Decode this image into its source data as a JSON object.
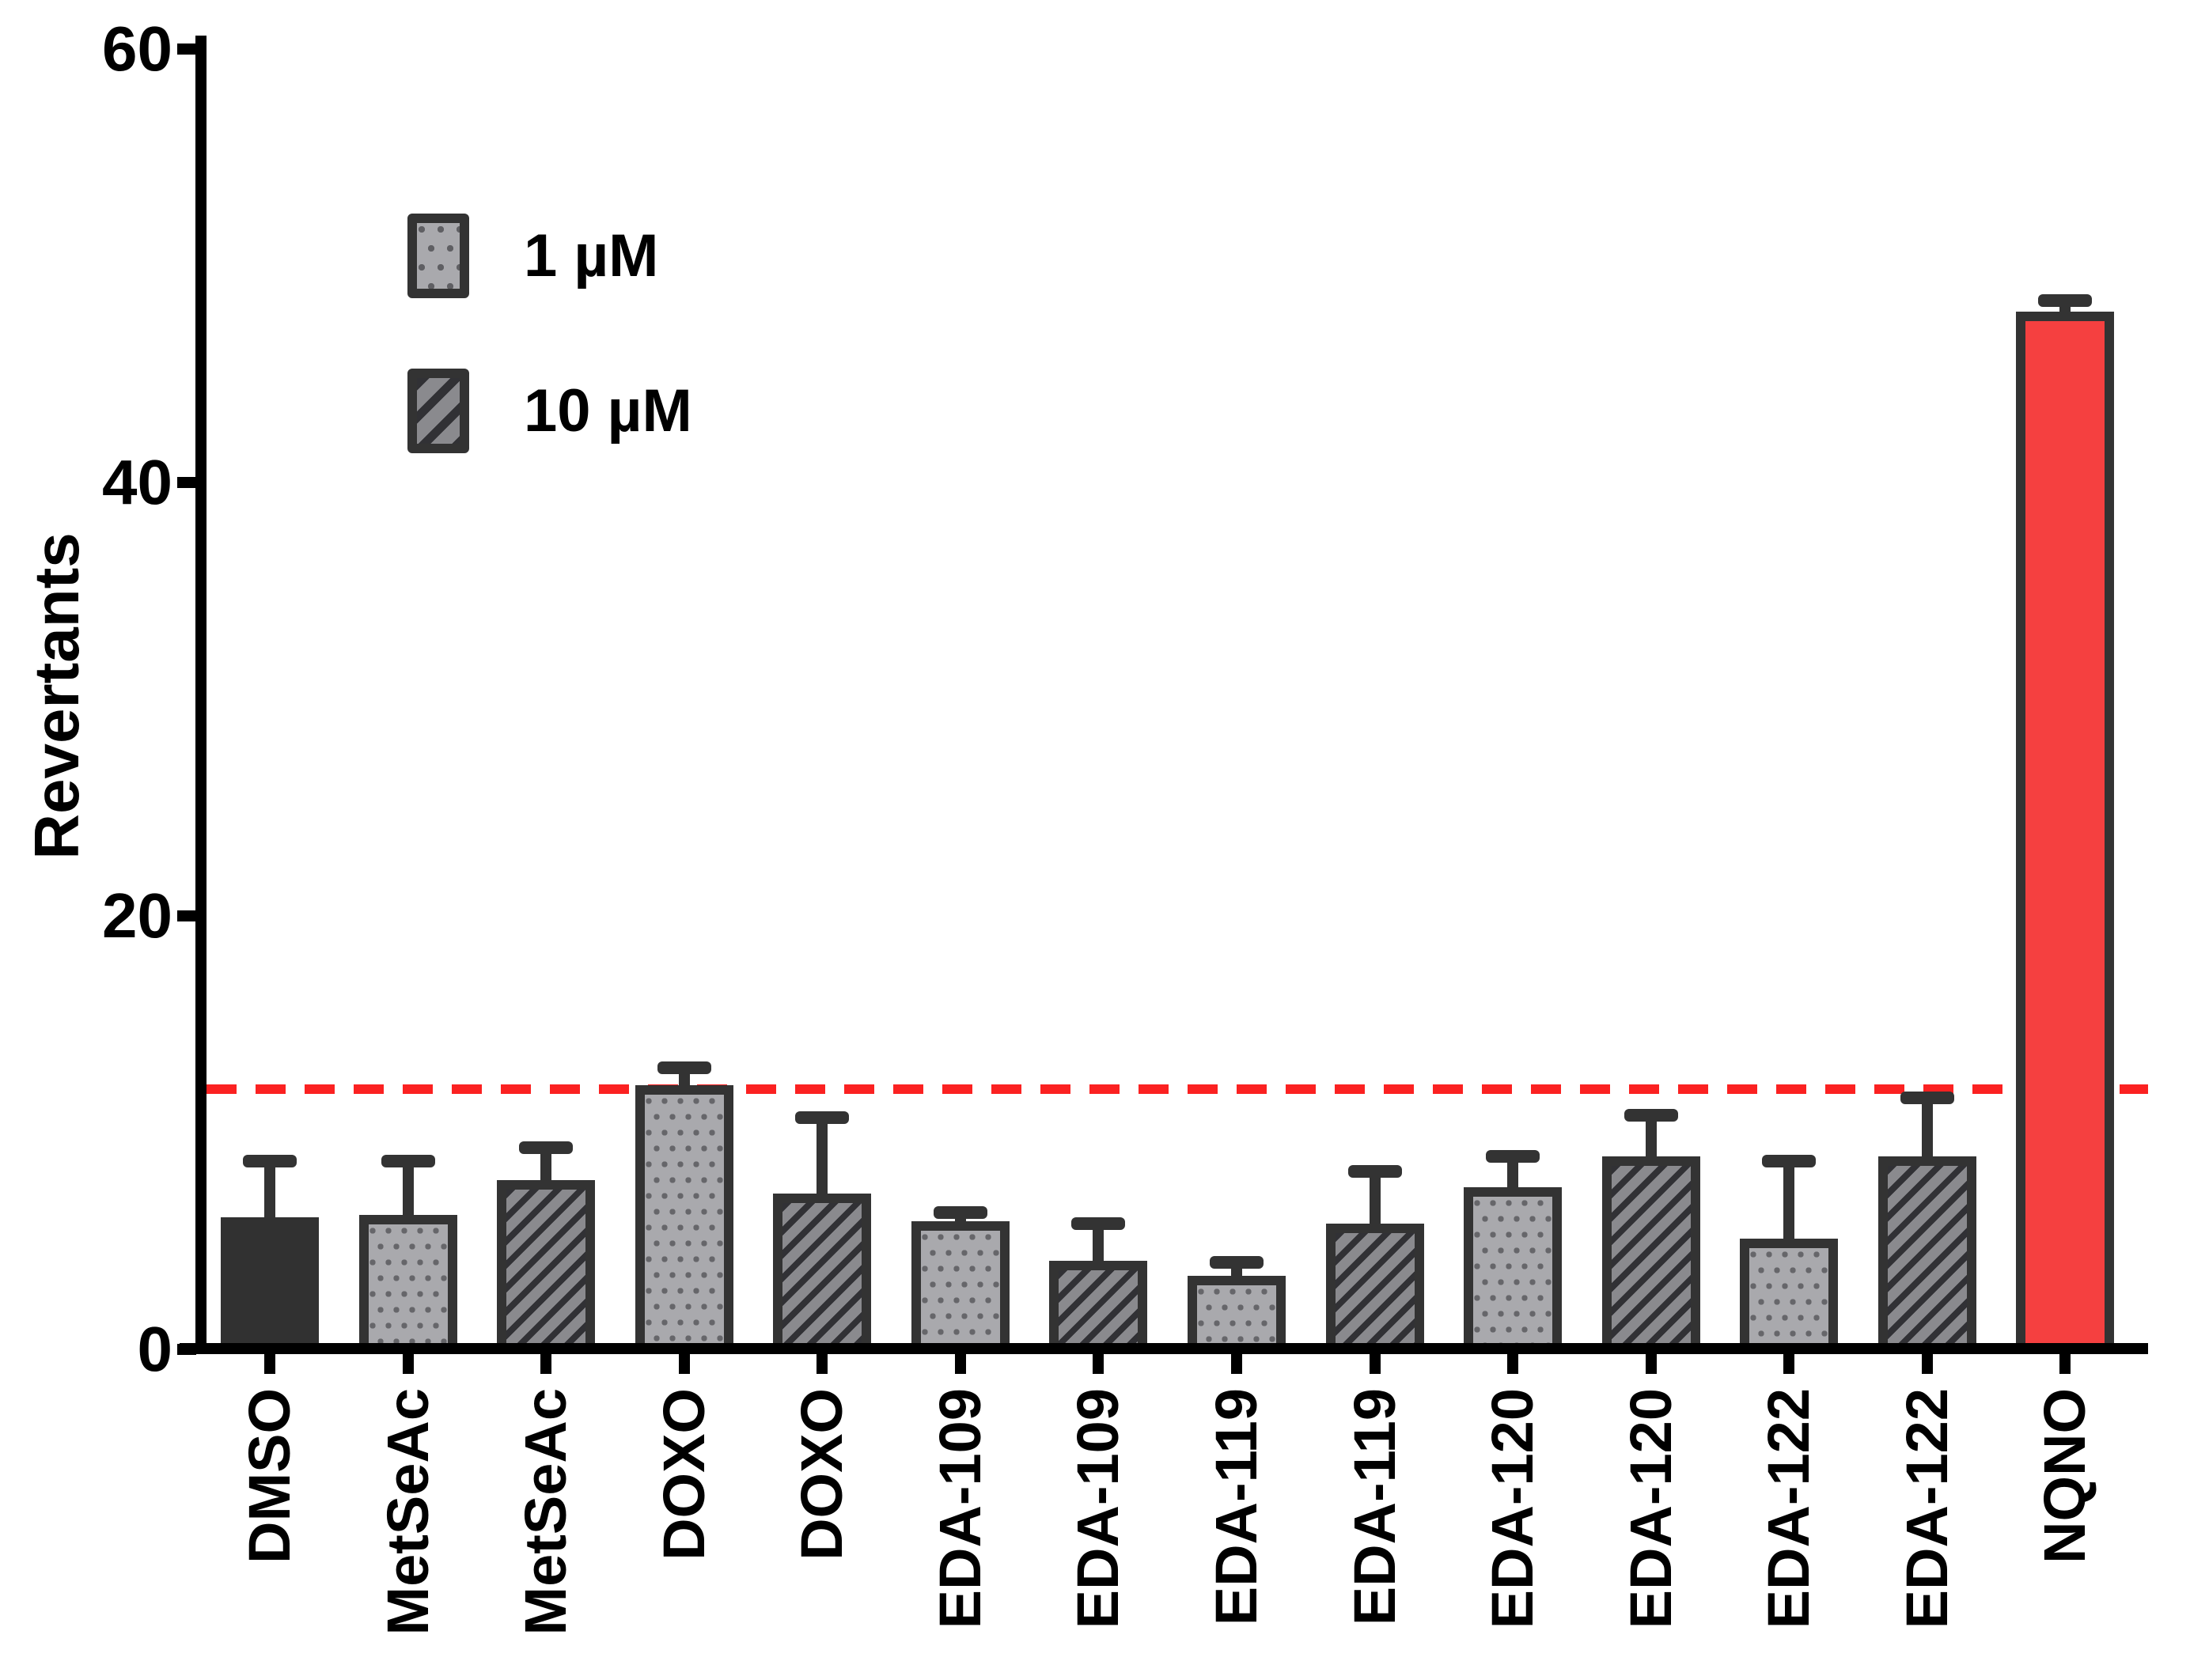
{
  "page": {
    "background": "#ffffff"
  },
  "y_axis": {
    "label": "Revertants",
    "tick_labels": [
      "0",
      "20",
      "40",
      "60"
    ]
  },
  "legend": {
    "items": [
      {
        "label": "1 µM",
        "swatch": "dots-swatch"
      },
      {
        "label": "10 µM",
        "swatch": "hatch-swatch"
      }
    ]
  },
  "threshold_line": {
    "y_value": 12,
    "color": "#fb2121",
    "style": "dashed"
  },
  "colors": {
    "axis": "#000000",
    "bar_border": "#333333",
    "solid_dark_fill": "#313131",
    "dots_background": "#a9a9ad",
    "dots_dot": "#66666a",
    "hatch_background": "#8a8a8e",
    "hatch_stripe": "#313135",
    "nqno_fill": "#f54040",
    "error_bar": "#333333",
    "threshold_red": "#fb2121"
  },
  "chart_data": {
    "type": "bar",
    "title": "",
    "xlabel": "",
    "ylabel": "Revertants",
    "ylim": [
      0,
      60
    ],
    "yticks": [
      0,
      20,
      40,
      60
    ],
    "grid": "off",
    "legend_position": "upper-left",
    "legend_entries": [
      "1 µM",
      "10 µM"
    ],
    "threshold_line_y": 12,
    "categories": [
      "DMSO",
      "MetSeAc",
      "MetSeAc",
      "DOXO",
      "DOXO",
      "EDA-109",
      "EDA-109",
      "EDA-119",
      "EDA-119",
      "EDA-120",
      "EDA-120",
      "EDA-122",
      "EDA-122",
      "NQNO"
    ],
    "bars": [
      {
        "label": "DMSO",
        "value": 6.1,
        "error_high": 8.7,
        "style": "solid-dark"
      },
      {
        "label": "MetSeAc",
        "value": 6.2,
        "error_high": 8.7,
        "style": "dots"
      },
      {
        "label": "MetSeAc",
        "value": 7.8,
        "error_high": 9.3,
        "style": "hatch"
      },
      {
        "label": "DOXO",
        "value": 12.2,
        "error_high": 13.0,
        "style": "dots"
      },
      {
        "label": "DOXO",
        "value": 7.2,
        "error_high": 10.7,
        "style": "hatch"
      },
      {
        "label": "EDA-109",
        "value": 5.9,
        "error_high": 6.3,
        "style": "dots"
      },
      {
        "label": "EDA-109",
        "value": 4.1,
        "error_high": 5.8,
        "style": "hatch"
      },
      {
        "label": "EDA-119",
        "value": 3.4,
        "error_high": 4.0,
        "style": "dots"
      },
      {
        "label": "EDA-119",
        "value": 5.8,
        "error_high": 8.2,
        "style": "hatch"
      },
      {
        "label": "EDA-120",
        "value": 7.5,
        "error_high": 8.9,
        "style": "dots"
      },
      {
        "label": "EDA-120",
        "value": 8.9,
        "error_high": 10.8,
        "style": "hatch"
      },
      {
        "label": "EDA-122",
        "value": 5.1,
        "error_high": 8.7,
        "style": "dots"
      },
      {
        "label": "EDA-122",
        "value": 8.9,
        "error_high": 11.6,
        "style": "hatch"
      },
      {
        "label": "NQNO",
        "value": 47.9,
        "error_high": 48.4,
        "style": "solid-red"
      }
    ]
  }
}
